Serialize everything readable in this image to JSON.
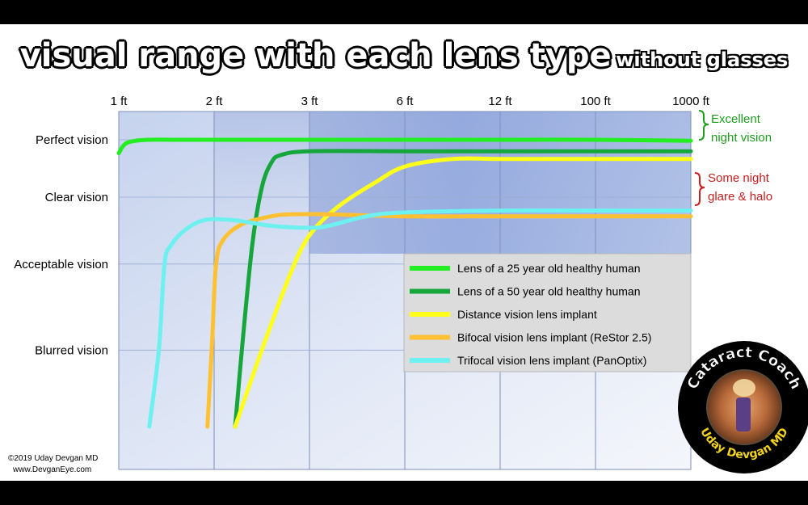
{
  "title": {
    "main": "visual range with each lens type",
    "sub": "without glasses"
  },
  "credit": {
    "line1": "©2019 Uday Devgan MD",
    "line2": "www.DevganEye.com"
  },
  "logo": {
    "top_text": "Cataract Coach",
    "bottom_text": "Uday Devgan MD"
  },
  "annotations": {
    "good": {
      "line1": "Excellent",
      "line2": "night vision",
      "color": "#1e9e1e"
    },
    "bad": {
      "line1": "Some night",
      "line2": "glare & halo",
      "color": "#c81e1e"
    }
  },
  "chart_data": {
    "type": "line",
    "x_ticks": [
      "1 ft",
      "2 ft",
      "3 ft",
      "6 ft",
      "12 ft",
      "100 ft",
      "1000 ft"
    ],
    "y_levels": [
      "Perfect vision",
      "Clear vision",
      "Acceptable vision",
      "Blurred vision"
    ],
    "y_level_values": [
      1.0,
      0.7,
      0.35,
      -0.1
    ],
    "ylim": [
      -0.5,
      1.0
    ],
    "grid": true,
    "legend_position": "center-right",
    "series": [
      {
        "name": "Lens of a 25 year old healthy human",
        "color": "#22ee22",
        "x": [
          0,
          0.05,
          0.12,
          0.3,
          0.6,
          1,
          2,
          3,
          4,
          5,
          6
        ],
        "y": [
          0.93,
          0.97,
          0.99,
          1.0,
          1.0,
          1.0,
          1.0,
          1.0,
          1.0,
          1.0,
          0.995
        ]
      },
      {
        "name": "Lens of a 50 year old healthy human",
        "color": "#16a63c",
        "x": [
          1.22,
          1.3,
          1.4,
          1.5,
          1.6,
          1.7,
          2,
          3,
          4,
          5,
          6
        ],
        "y": [
          -0.5,
          -0.05,
          0.45,
          0.75,
          0.88,
          0.92,
          0.94,
          0.94,
          0.94,
          0.94,
          0.94
        ]
      },
      {
        "name": "Distance vision lens implant",
        "color": "#ffff1a",
        "x": [
          1.22,
          1.5,
          1.8,
          2.0,
          2.3,
          2.7,
          3.0,
          3.5,
          4,
          5,
          6
        ],
        "y": [
          -0.5,
          -0.1,
          0.3,
          0.5,
          0.65,
          0.78,
          0.86,
          0.9,
          0.9,
          0.9,
          0.9
        ]
      },
      {
        "name": "Bifocal vision lens implant (ReStor 2.5)",
        "color": "#ffc132",
        "x": [
          0.93,
          0.98,
          1.02,
          1.1,
          1.3,
          1.6,
          1.8,
          2.2,
          3,
          4,
          5,
          6
        ],
        "y": [
          -0.5,
          -0.05,
          0.35,
          0.48,
          0.56,
          0.6,
          0.61,
          0.61,
          0.6,
          0.6,
          0.6,
          0.6
        ]
      },
      {
        "name": "Trifocal vision lens implant (PanOptix)",
        "color": "#6df0f0",
        "x": [
          0.32,
          0.42,
          0.48,
          0.55,
          0.7,
          0.9,
          1.2,
          1.6,
          2.0,
          2.2,
          2.6,
          3.0,
          4,
          5,
          6
        ],
        "y": [
          -0.5,
          -0.1,
          0.35,
          0.45,
          0.53,
          0.58,
          0.58,
          0.55,
          0.54,
          0.55,
          0.6,
          0.62,
          0.63,
          0.63,
          0.63
        ]
      }
    ]
  }
}
